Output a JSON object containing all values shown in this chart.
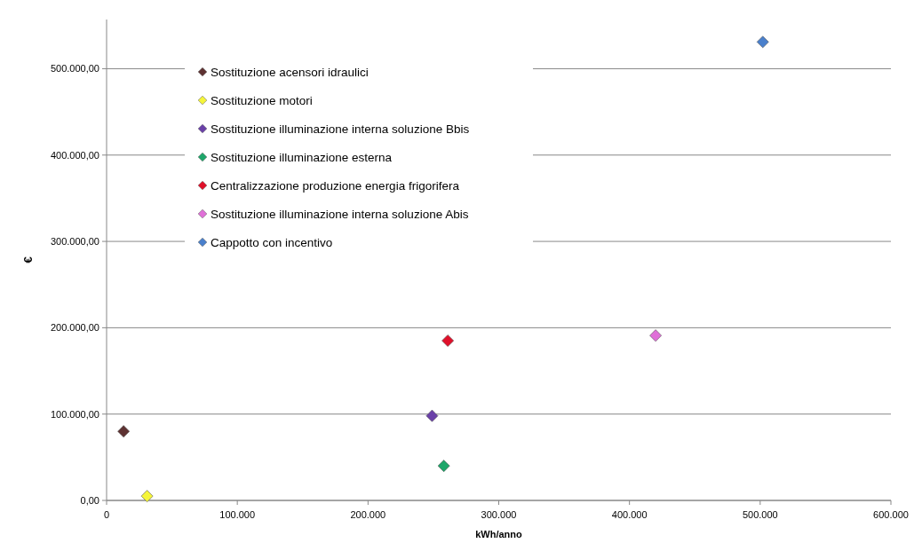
{
  "chart_data": {
    "type": "scatter",
    "xlabel": "kWh/anno",
    "ylabel": "€",
    "xlim": [
      0,
      600000
    ],
    "ylim": [
      0,
      557000
    ],
    "xticks": [
      {
        "value": 0,
        "label": "0"
      },
      {
        "value": 100000,
        "label": "100.000"
      },
      {
        "value": 200000,
        "label": "200.000"
      },
      {
        "value": 300000,
        "label": "300.000"
      },
      {
        "value": 400000,
        "label": "400.000"
      },
      {
        "value": 500000,
        "label": "500.000"
      },
      {
        "value": 600000,
        "label": "600.000"
      }
    ],
    "yticks": [
      {
        "value": 0,
        "label": "0,00"
      },
      {
        "value": 100000,
        "label": "100.000,00"
      },
      {
        "value": 200000,
        "label": "200.000,00"
      },
      {
        "value": 300000,
        "label": "300.000,00"
      },
      {
        "value": 400000,
        "label": "400.000,00"
      },
      {
        "value": 500000,
        "label": "500.000,00"
      }
    ],
    "grid": "y",
    "legend": "top left",
    "marker": "diamond",
    "series": [
      {
        "name": "Sostituzione acensori idraulici",
        "color": "#5e3232",
        "x": [
          13000
        ],
        "values": [
          80000
        ]
      },
      {
        "name": "Sostituzione motori",
        "color": "#f5f53a",
        "x": [
          31000
        ],
        "values": [
          5000
        ]
      },
      {
        "name": "Sostituzione illuminazione interna soluzione Bbis",
        "color": "#6a40a8",
        "x": [
          249000
        ],
        "values": [
          98000
        ]
      },
      {
        "name": "Sostituzione illuminazione esterna",
        "color": "#1ea66a",
        "x": [
          258000
        ],
        "values": [
          40000
        ]
      },
      {
        "name": "Centralizzazione produzione energia frigorifera",
        "color": "#e0102a",
        "x": [
          261000
        ],
        "values": [
          185000
        ]
      },
      {
        "name": "Sostituzione illuminazione interna soluzione Abis",
        "color": "#e070d8",
        "x": [
          420000
        ],
        "values": [
          191000
        ]
      },
      {
        "name": "Cappotto con incentivo",
        "color": "#4a80cc",
        "x": [
          502000
        ],
        "values": [
          531000
        ]
      }
    ]
  }
}
